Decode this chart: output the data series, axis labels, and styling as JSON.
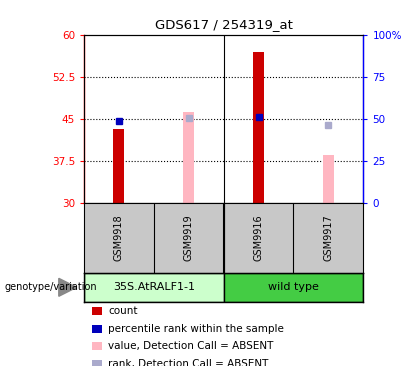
{
  "title": "GDS617 / 254319_at",
  "samples": [
    "GSM9918",
    "GSM9919",
    "GSM9916",
    "GSM9917"
  ],
  "ylim_left": [
    30,
    60
  ],
  "ylim_right": [
    0,
    100
  ],
  "yticks_left": [
    30,
    37.5,
    45,
    52.5,
    60
  ],
  "yticks_right": [
    0,
    25,
    50,
    75,
    100
  ],
  "ytick_labels_left": [
    "30",
    "37.5",
    "45",
    "52.5",
    "60"
  ],
  "ytick_labels_right": [
    "0",
    "25",
    "50",
    "75",
    "100%"
  ],
  "red_bars": [
    43.2,
    null,
    57.0,
    null
  ],
  "blue_dots": [
    44.6,
    null,
    45.3,
    null
  ],
  "pink_bars": [
    null,
    46.3,
    null,
    38.5
  ],
  "lightblue_dots": [
    null,
    45.2,
    null,
    44.0
  ],
  "bar_bottom": 30,
  "red_bar_color": "#CC0000",
  "blue_dot_color": "#0000BB",
  "pink_bar_color": "#FFB6C1",
  "lightblue_dot_color": "#AAAACC",
  "background_color": "#FFFFFF",
  "group1_label": "35S.AtRALF1-1",
  "group2_label": "wild type",
  "group1_color": "#CCFFCC",
  "group2_color": "#44CC44",
  "legend_items": [
    "count",
    "percentile rank within the sample",
    "value, Detection Call = ABSENT",
    "rank, Detection Call = ABSENT"
  ],
  "legend_colors": [
    "#CC0000",
    "#0000BB",
    "#FFB6C1",
    "#AAAACC"
  ],
  "genotype_label": "genotype/variation"
}
